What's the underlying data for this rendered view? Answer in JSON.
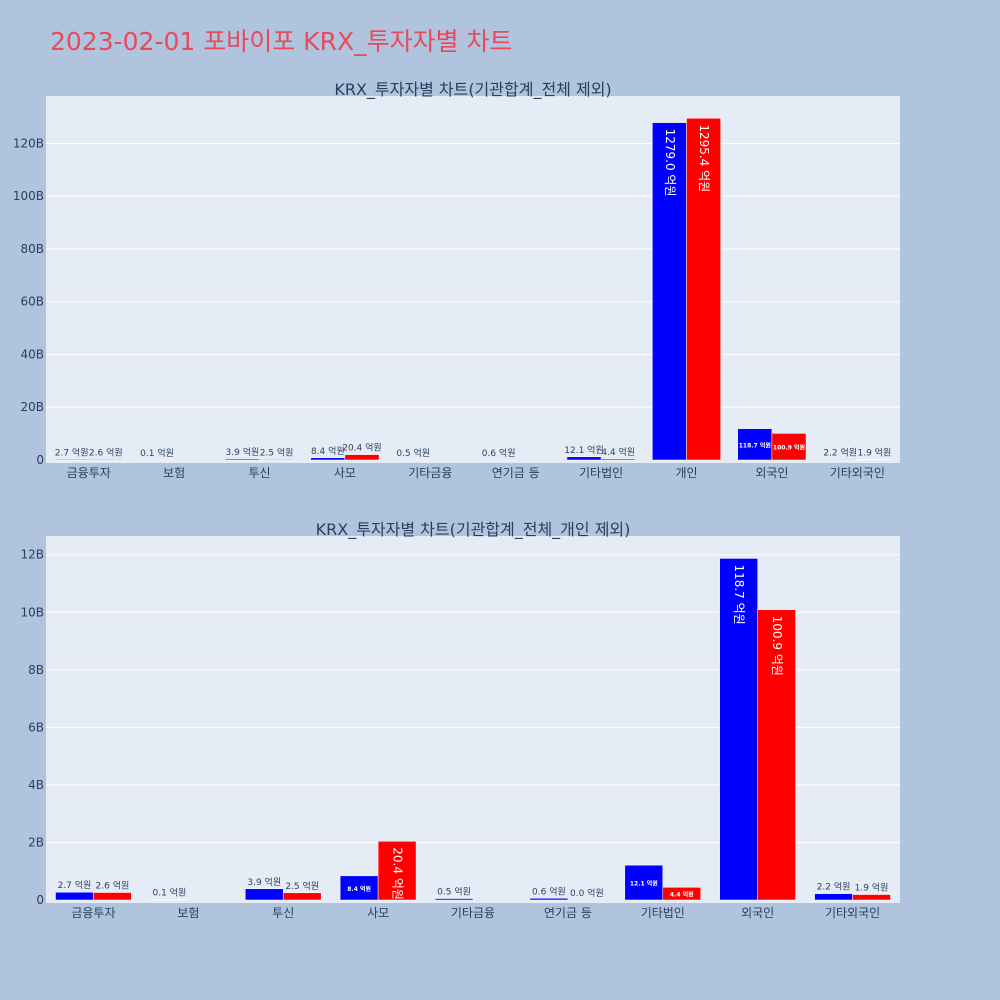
{
  "page_title": "2023-02-01 포바이포 KRX_투자자별 차트",
  "colors": {
    "series1": "#0000ff",
    "series2": "#ff0000",
    "plot_bg": "#e5ecf6",
    "page_bg": "#b0c4de",
    "title": "#e8495b"
  },
  "chart_data": [
    {
      "type": "bar",
      "title": "KRX_투자자별 차트(기관합계_전체 제외)",
      "categories": [
        "금융투자",
        "보험",
        "투신",
        "사모",
        "기타금융",
        "연기금 등",
        "기타법인",
        "개인",
        "외국인",
        "기타외국인"
      ],
      "ylim": [
        0,
        138
      ],
      "yticks": [
        {
          "v": 0,
          "label": "0"
        },
        {
          "v": 20,
          "label": "20B"
        },
        {
          "v": 40,
          "label": "40B"
        },
        {
          "v": 60,
          "label": "60B"
        },
        {
          "v": 80,
          "label": "80B"
        },
        {
          "v": 100,
          "label": "100B"
        },
        {
          "v": 120,
          "label": "120B"
        }
      ],
      "grid": true,
      "series": [
        {
          "values": [
            0.27,
            0.01,
            0.39,
            0.84,
            0.05,
            0.06,
            1.21,
            127.9,
            11.87,
            0.22
          ],
          "labels": [
            "2.7 억원",
            "0.1 억원",
            "3.9 억원",
            "8.4 억원",
            "0.5 억원",
            "0.6 억원",
            "12.1 억원",
            "1279.0 억원",
            "118.7 억원",
            "2.2 억원"
          ]
        },
        {
          "values": [
            0.26,
            0,
            0.25,
            2.04,
            0,
            0,
            0.44,
            129.54,
            10.09,
            0.19
          ],
          "labels": [
            "2.6 억원",
            "",
            "2.5 억원",
            "20.4 억원",
            "",
            "",
            "4.4 억원",
            "1295.4 억원",
            "100.9 억원",
            "1.9 억원"
          ]
        }
      ]
    },
    {
      "type": "bar",
      "title": "KRX_투자자별 차트(기관합계_전체_개인 제외)",
      "categories": [
        "금융투자",
        "보험",
        "투신",
        "사모",
        "기타금융",
        "연기금 등",
        "기타법인",
        "외국인",
        "기타외국인"
      ],
      "ylim": [
        0,
        12.65
      ],
      "yticks": [
        {
          "v": 0,
          "label": "0"
        },
        {
          "v": 2,
          "label": "2B"
        },
        {
          "v": 4,
          "label": "4B"
        },
        {
          "v": 6,
          "label": "6B"
        },
        {
          "v": 8,
          "label": "8B"
        },
        {
          "v": 10,
          "label": "10B"
        },
        {
          "v": 12,
          "label": "12B"
        }
      ],
      "grid": true,
      "series": [
        {
          "values": [
            0.27,
            0.01,
            0.39,
            0.84,
            0.05,
            0.06,
            1.21,
            11.87,
            0.22
          ],
          "labels": [
            "2.7 억원",
            "0.1 억원",
            "3.9 억원",
            "8.4 억원",
            "0.5 억원",
            "0.6 억원",
            "12.1 억원",
            "118.7 억원",
            "2.2 억원"
          ]
        },
        {
          "values": [
            0.26,
            0,
            0.25,
            2.04,
            0,
            0,
            0.44,
            10.09,
            0.19
          ],
          "labels": [
            "2.6 억원",
            "",
            "2.5 억원",
            "20.4 억원",
            "",
            "0.0 억원",
            "4.4 억원",
            "100.9 억원",
            "1.9 억원"
          ]
        }
      ]
    }
  ]
}
